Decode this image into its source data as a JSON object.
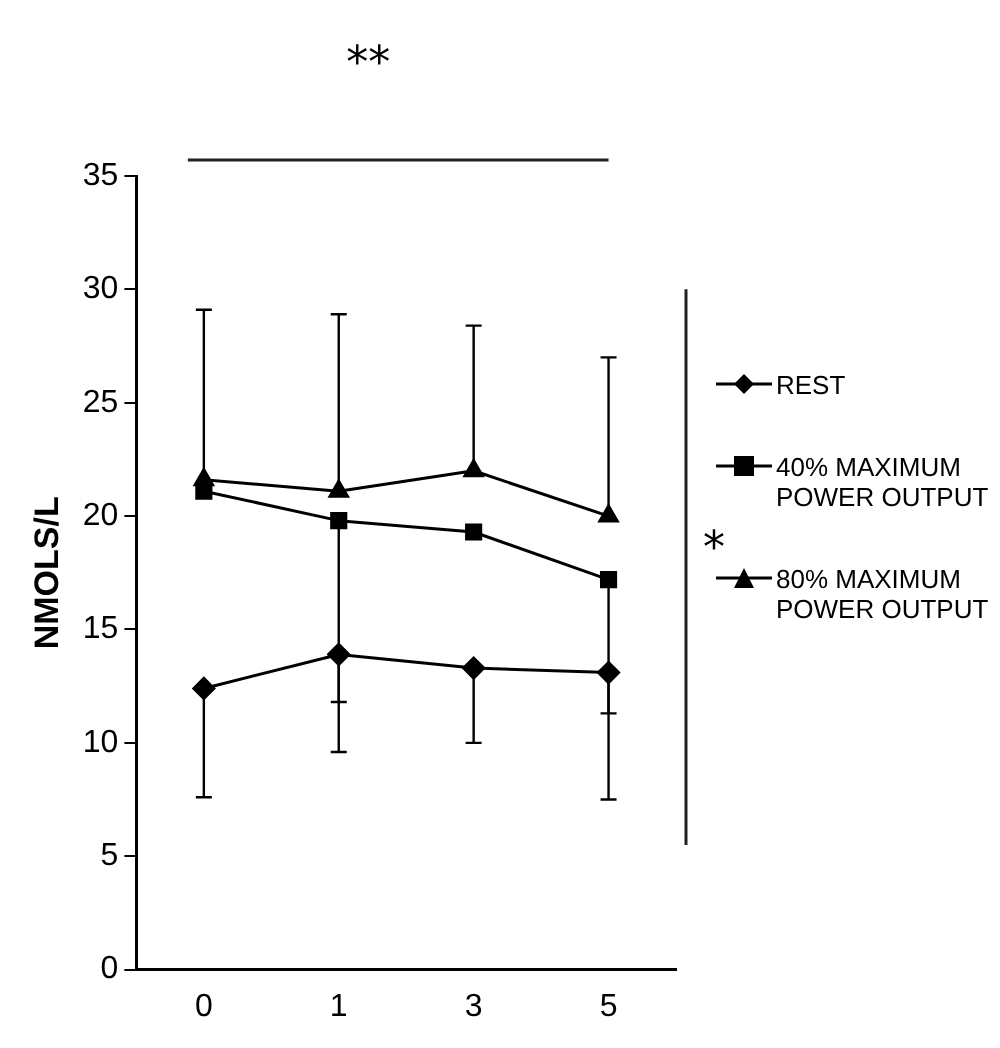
{
  "chart_data": {
    "type": "line",
    "ylabel": "NMOLS/L",
    "categories": [
      "0",
      "1",
      "3",
      "5"
    ],
    "ylim": [
      0,
      35
    ],
    "yticks": [
      0,
      5,
      10,
      15,
      20,
      25,
      30,
      35
    ],
    "grid": false,
    "legend": "right",
    "line_style": "solid",
    "series": [
      {
        "name": "REST",
        "color": "#000000",
        "marker": "diamond",
        "values": [
          12.4,
          13.9,
          13.3,
          13.1
        ],
        "errors": [
          [
            7.6,
            12.4
          ],
          [
            11.8,
            13.9
          ],
          [
            10.0,
            13.3
          ],
          [
            11.3,
            13.1
          ]
        ]
      },
      {
        "name": "40% MAXIMUM POWER OUTPUT",
        "color": "#000000",
        "marker": "square",
        "values": [
          21.1,
          19.8,
          19.3,
          17.2
        ],
        "errors": [
          null,
          [
            9.6,
            19.8
          ],
          null,
          [
            7.5,
            17.2
          ]
        ]
      },
      {
        "name": "80% MAXIMUM POWER OUTPUT",
        "color": "#000000",
        "marker": "triangle",
        "values": [
          21.6,
          21.1,
          22.0,
          20.0
        ],
        "errors": [
          [
            21.6,
            29.1
          ],
          [
            21.1,
            28.9
          ],
          [
            22.0,
            28.4
          ],
          [
            20.0,
            27.0
          ]
        ]
      }
    ],
    "annotations": [
      "**",
      "*"
    ]
  }
}
